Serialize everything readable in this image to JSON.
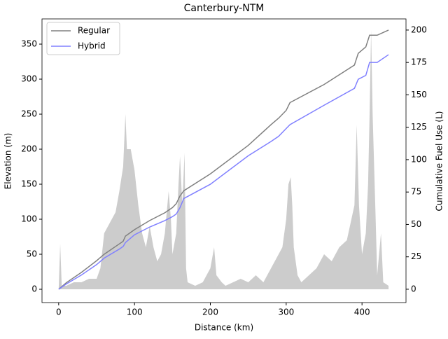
{
  "chart_data": {
    "type": "line",
    "title": "Canterbury-NTM",
    "xlabel": "Distance (km)",
    "ylabel": "Elevation (m)",
    "y2label": "Cumulative Fuel Use (L)",
    "xlim": [
      -22,
      458
    ],
    "ylim": [
      -19,
      386
    ],
    "y2lim": [
      -10.3,
      208.6
    ],
    "xticks": [
      0,
      100,
      200,
      300,
      400
    ],
    "yticks": [
      0,
      50,
      100,
      150,
      200,
      250,
      300,
      350
    ],
    "y2ticks": [
      0,
      25,
      50,
      75,
      100,
      125,
      150,
      175,
      200
    ],
    "legend": "upper-left",
    "elevation": {
      "color": "#cccccc",
      "x": [
        0,
        2,
        4,
        10,
        20,
        30,
        40,
        50,
        55,
        60,
        65,
        70,
        75,
        80,
        85,
        88,
        90,
        95,
        100,
        105,
        110,
        115,
        120,
        125,
        130,
        135,
        140,
        145,
        148,
        150,
        155,
        158,
        160,
        163,
        166,
        168,
        170,
        180,
        190,
        200,
        205,
        208,
        215,
        220,
        230,
        240,
        250,
        260,
        270,
        280,
        290,
        295,
        300,
        303,
        306,
        308,
        310,
        315,
        320,
        330,
        340,
        350,
        360,
        370,
        380,
        390,
        393,
        396,
        400,
        405,
        408,
        410,
        412,
        414,
        418,
        420,
        425,
        428,
        435
      ],
      "values": [
        0,
        65,
        5,
        5,
        10,
        10,
        15,
        15,
        30,
        80,
        90,
        100,
        110,
        140,
        175,
        250,
        200,
        200,
        170,
        120,
        80,
        60,
        90,
        60,
        40,
        50,
        80,
        140,
        100,
        50,
        80,
        150,
        190,
        120,
        195,
        30,
        10,
        5,
        10,
        30,
        60,
        20,
        10,
        5,
        10,
        15,
        10,
        20,
        10,
        30,
        50,
        60,
        100,
        150,
        160,
        120,
        60,
        20,
        10,
        20,
        30,
        50,
        40,
        60,
        70,
        120,
        235,
        120,
        50,
        80,
        150,
        250,
        370,
        250,
        100,
        20,
        80,
        10,
        5
      ]
    },
    "series": [
      {
        "name": "Regular",
        "color": "#808080",
        "axis": "y2",
        "x": [
          0,
          10,
          30,
          50,
          60,
          80,
          85,
          88,
          100,
          120,
          140,
          150,
          155,
          160,
          165,
          200,
          250,
          280,
          290,
          300,
          305,
          350,
          390,
          395,
          405,
          410,
          420,
          435
        ],
        "values": [
          0,
          5,
          13,
          22,
          27,
          35,
          37,
          41,
          46,
          53,
          59,
          63,
          66,
          72,
          76,
          89,
          111,
          127,
          132,
          138,
          144,
          158,
          173,
          182,
          187,
          196,
          196,
          200
        ]
      },
      {
        "name": "Hybrid",
        "color": "#8080ff",
        "axis": "y2",
        "x": [
          0,
          10,
          30,
          50,
          60,
          80,
          85,
          88,
          100,
          120,
          140,
          150,
          155,
          160,
          165,
          200,
          250,
          280,
          290,
          300,
          305,
          350,
          390,
          395,
          405,
          410,
          420,
          435
        ],
        "values": [
          0,
          4,
          11,
          19,
          24,
          31,
          33,
          36,
          42,
          48,
          53,
          56,
          58,
          63,
          70,
          81,
          103,
          114,
          118,
          124,
          127,
          142,
          155,
          162,
          165,
          175,
          175,
          181
        ]
      }
    ]
  }
}
